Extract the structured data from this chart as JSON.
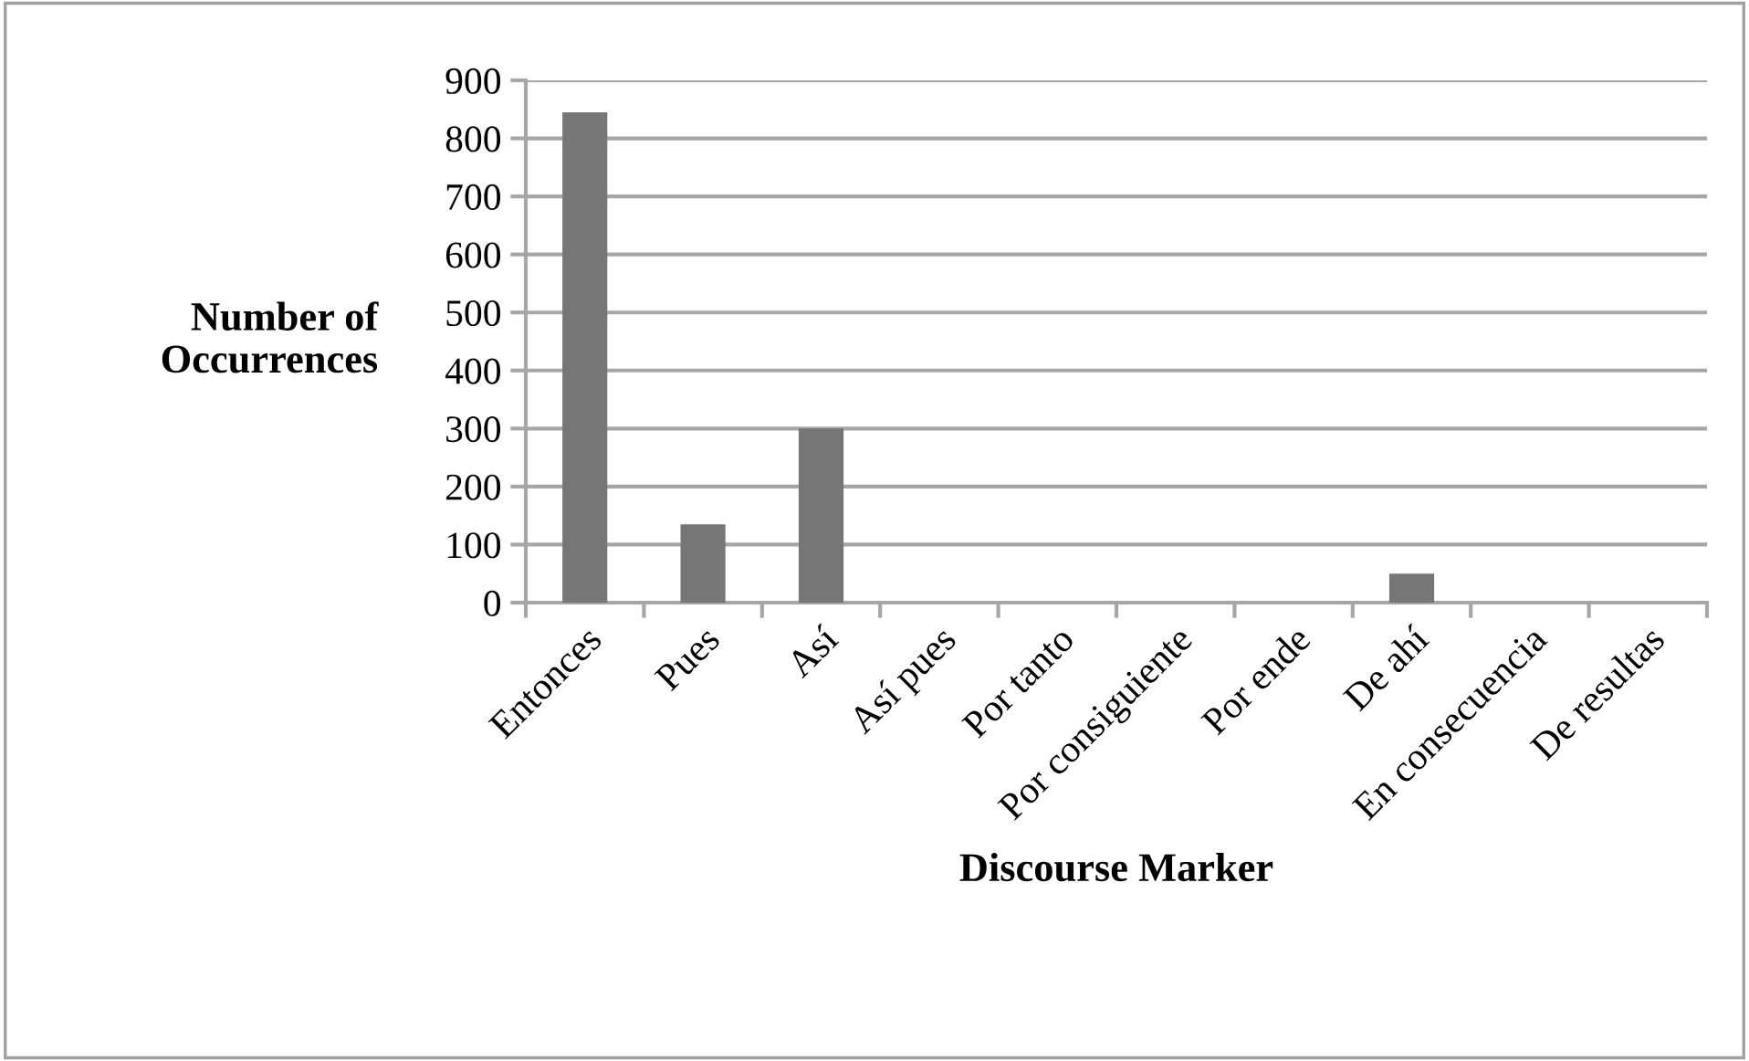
{
  "chart_data": {
    "type": "bar",
    "xlabel": "Discourse Marker",
    "ylabel": "Number of\nOccurrences",
    "categories": [
      "Entonces",
      "Pues",
      "Así",
      "Así pues",
      "Por tanto",
      "Por consiguiente",
      "Por ende",
      "De ahí",
      "En consecuencia",
      "De resultas"
    ],
    "values": [
      845,
      135,
      300,
      0,
      0,
      0,
      0,
      50,
      0,
      0
    ],
    "color": "#767676",
    "ylim": [
      0,
      900
    ],
    "yticks": [
      0,
      100,
      200,
      300,
      400,
      500,
      600,
      700,
      800,
      900
    ],
    "grid": "y"
  }
}
